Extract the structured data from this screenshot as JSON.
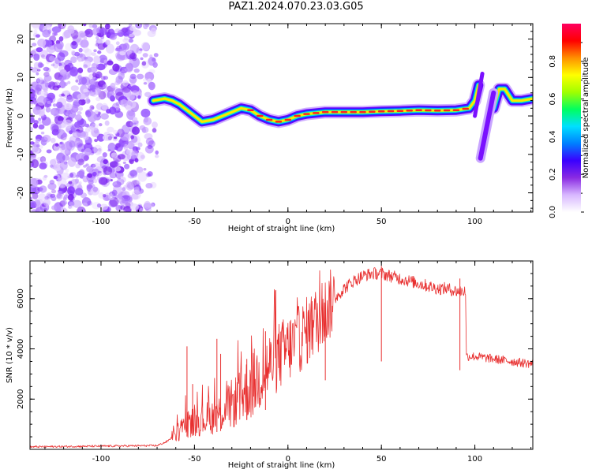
{
  "figure": {
    "title": "PAZ1.2024.070.23.03.G05"
  },
  "chart_data": [
    {
      "type": "heatmap",
      "name": "spectrogram",
      "xlabel": "Height of straight line (km)",
      "ylabel": "Frequency (Hz)",
      "xlim": [
        -138,
        131
      ],
      "ylim": [
        -25,
        24
      ],
      "xticks": [
        -100,
        -50,
        0,
        50,
        100
      ],
      "yticks": [
        -20,
        -10,
        0,
        10,
        20
      ],
      "grid": false,
      "noise_region": {
        "x": [
          -138,
          -70
        ],
        "y": [
          -25,
          24
        ]
      },
      "ridge": {
        "x": [
          -72,
          -66,
          -62,
          -58,
          -54,
          -50,
          -46,
          -40,
          -35,
          -30,
          -25,
          -20,
          -15,
          -10,
          -5,
          0,
          5,
          10,
          20,
          30,
          40,
          50,
          60,
          70,
          80,
          90,
          97,
          100,
          102
        ],
        "y": [
          4,
          4.5,
          4,
          3,
          1.5,
          0,
          -1.5,
          -1,
          0,
          1,
          2,
          1.5,
          0,
          -1,
          -1.5,
          -1,
          0,
          0.5,
          1,
          1,
          1,
          1.2,
          1.3,
          1.5,
          1.4,
          1.5,
          2,
          4,
          8
        ]
      },
      "spike": {
        "x": [
          103,
          110
        ],
        "y": [
          -11,
          6
        ]
      },
      "tail": {
        "x": [
          110,
          113,
          116,
          120,
          125,
          131
        ],
        "y": [
          2,
          7,
          7,
          4,
          4,
          4.5
        ]
      }
    },
    {
      "type": "colorbar",
      "label": "Normalized spectral amplitude",
      "range": [
        0,
        1
      ],
      "ticks": [
        0.0,
        0.2,
        0.4,
        0.6,
        0.8
      ],
      "tick_labels": [
        "0.0",
        "0.2",
        "0.4",
        "0.6",
        "0.8"
      ],
      "colormap": [
        "#ffffff",
        "#d8b8ff",
        "#8a2be2",
        "#3a00ff",
        "#0080ff",
        "#00e0ff",
        "#00ff60",
        "#a0ff00",
        "#ffff00",
        "#ff9000",
        "#ff0000",
        "#ff0060"
      ]
    },
    {
      "type": "line",
      "name": "snr",
      "xlabel": "Height of straight line (km)",
      "ylabel": "SNR (10 * v/v)",
      "xlim": [
        -138,
        131
      ],
      "ylim": [
        0,
        7500
      ],
      "xticks": [
        -100,
        -50,
        0,
        50,
        100
      ],
      "yticks": [
        2000,
        4000,
        6000
      ],
      "color": "#e83030",
      "grid": false,
      "profile": {
        "x": [
          -138,
          -70,
          -65,
          -60,
          -55,
          -50,
          -45,
          -40,
          -35,
          -30,
          -25,
          -20,
          -15,
          -10,
          -5,
          0,
          5,
          10,
          15,
          20,
          25,
          30,
          35,
          40,
          45,
          50,
          55,
          60,
          65,
          70,
          75,
          80,
          85,
          90,
          95,
          95.5,
          100,
          105,
          110,
          115,
          120,
          125,
          131
        ],
        "y": [
          100,
          150,
          300,
          600,
          1000,
          1100,
          1200,
          1300,
          1500,
          1800,
          2100,
          2500,
          2900,
          3300,
          3700,
          4000,
          4300,
          4700,
          5100,
          5500,
          6000,
          6400,
          6700,
          6900,
          7000,
          7000,
          6900,
          6800,
          6700,
          6600,
          6500,
          6400,
          6400,
          6300,
          6300,
          3700,
          3700,
          3650,
          3600,
          3550,
          3500,
          3450,
          3400
        ]
      },
      "peaks": [
        {
          "x": -54,
          "y": 4100
        },
        {
          "x": -51,
          "y": 2600
        },
        {
          "x": -38,
          "y": 4400
        },
        {
          "x": -36,
          "y": 3800
        },
        {
          "x": -22,
          "y": 3600
        },
        {
          "x": -12,
          "y": 4700
        },
        {
          "x": 20,
          "y": 5800
        },
        {
          "x": 50,
          "y": 7300
        },
        {
          "x": 92,
          "y": 6800
        }
      ]
    }
  ]
}
